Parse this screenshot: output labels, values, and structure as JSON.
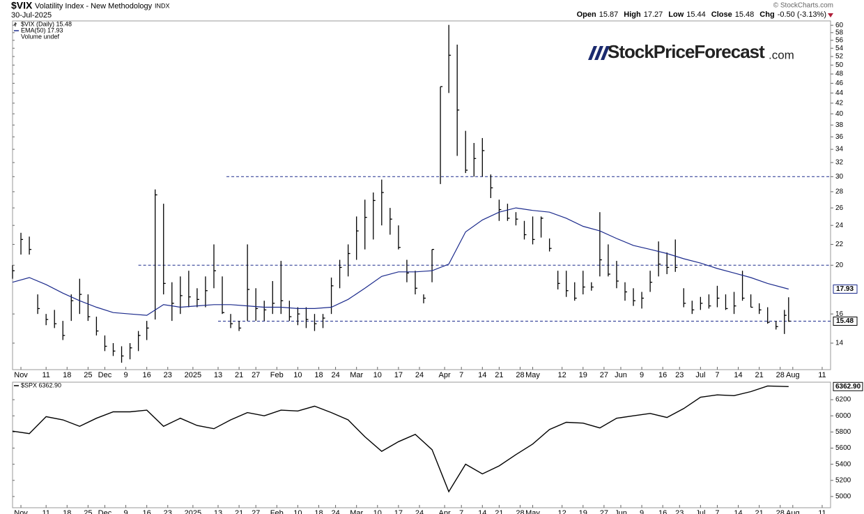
{
  "header": {
    "symbol": "$VIX",
    "name": "Volatility Index - New Methodology",
    "exchange": "INDX",
    "date": "30-Jul-2025",
    "quote": [
      [
        "Open",
        "15.87"
      ],
      [
        "High",
        "17.27"
      ],
      [
        "Low",
        "15.44"
      ],
      [
        "Close",
        "15.48"
      ],
      [
        "Chg",
        "-0.50 (-3.13%)"
      ]
    ],
    "copyright": "© StockCharts.com"
  },
  "logo": {
    "name": "StockPriceForecast",
    "suffix": ".com"
  },
  "chart_data": [
    {
      "type": "hlc",
      "log": true,
      "color": "#000000",
      "legend": [
        "$VIX (Daily) 15.48",
        "EMA(50) 17.93",
        "Volume undef"
      ],
      "x": [
        0,
        2,
        4,
        6,
        8,
        10,
        12,
        14,
        16,
        18,
        20,
        22,
        24,
        26,
        28,
        30,
        32,
        34,
        36,
        38,
        40,
        42,
        44,
        46,
        48,
        50,
        52,
        54,
        56,
        58,
        60,
        62,
        64,
        66,
        68,
        70,
        72,
        74,
        76,
        78,
        80,
        82,
        84,
        86,
        88,
        90,
        92,
        94,
        96,
        98,
        100,
        102,
        104,
        106,
        108,
        110,
        112,
        114,
        116,
        118,
        120,
        122,
        124,
        126,
        128,
        130,
        132,
        134,
        136,
        138,
        140,
        142,
        144,
        146,
        148,
        150,
        152,
        154,
        156,
        158,
        160,
        162,
        164,
        166,
        168,
        170,
        172,
        174,
        176,
        178,
        180,
        182,
        184,
        185
      ],
      "high": [
        20.0,
        23.2,
        22.8,
        17.5,
        16.0,
        16.3,
        15.5,
        17.5,
        18.8,
        17.5,
        15.8,
        14.5,
        14.0,
        13.8,
        14.0,
        14.8,
        15.5,
        28.3,
        26.5,
        18.5,
        19.0,
        19.5,
        18.0,
        19.0,
        22.0,
        19.0,
        16.0,
        15.5,
        22.0,
        18.0,
        17.0,
        18.6,
        20.4,
        17.0,
        16.5,
        16.5,
        16.0,
        16.0,
        18.9,
        20.5,
        22.0,
        25.0,
        27.0,
        27.9,
        29.6,
        26.0,
        24.0,
        20.5,
        19.5,
        17.5,
        21.5,
        45.3,
        60.1,
        54.9,
        37.0,
        35.0,
        35.8,
        30.3,
        27.0,
        26.5,
        25.5,
        24.5,
        25.0,
        25.0,
        22.6,
        19.5,
        19.5,
        18.5,
        19.5,
        18.5,
        25.5,
        22.0,
        20.4,
        18.5,
        18.0,
        17.7,
        19.5,
        22.3,
        21.2,
        22.5,
        18.0,
        17.0,
        17.3,
        17.5,
        18.2,
        17.5,
        17.7,
        19.5,
        17.5,
        16.8,
        16.5,
        15.5,
        16.3,
        17.27
      ],
      "low": [
        18.8,
        21.0,
        21.0,
        16.0,
        15.2,
        15.0,
        14.2,
        15.5,
        16.0,
        15.5,
        14.5,
        13.5,
        13.2,
        12.8,
        13.0,
        13.5,
        14.2,
        15.6,
        17.5,
        15.5,
        16.0,
        16.5,
        16.5,
        16.5,
        18.0,
        16.0,
        15.0,
        14.8,
        15.5,
        15.5,
        15.5,
        16.0,
        16.0,
        15.5,
        15.2,
        15.0,
        14.8,
        15.0,
        16.0,
        18.0,
        19.0,
        20.5,
        21.5,
        22.5,
        24.0,
        23.0,
        21.5,
        18.5,
        17.5,
        16.8,
        18.5,
        29.0,
        44.0,
        33.0,
        30.5,
        30.0,
        30.0,
        27.2,
        24.5,
        24.5,
        24.0,
        22.5,
        22.0,
        22.7,
        21.3,
        17.9,
        17.3,
        17.0,
        17.5,
        17.8,
        19.0,
        19.0,
        18.0,
        17.0,
        16.6,
        16.4,
        17.7,
        19.0,
        19.2,
        19.4,
        16.5,
        16.0,
        16.3,
        16.4,
        16.5,
        16.3,
        16.0,
        17.0,
        16.5,
        16.0,
        15.3,
        14.9,
        14.6,
        15.44
      ],
      "close": [
        19.5,
        22.5,
        21.5,
        16.4,
        15.6,
        15.3,
        14.5,
        17.0,
        17.5,
        15.8,
        14.8,
        13.8,
        13.5,
        13.2,
        13.7,
        14.5,
        15.0,
        27.6,
        18.4,
        16.8,
        17.4,
        17.3,
        17.1,
        17.8,
        19.5,
        16.1,
        15.3,
        15.0,
        17.9,
        16.4,
        16.3,
        16.8,
        17.0,
        15.8,
        16.0,
        15.6,
        15.3,
        15.7,
        18.2,
        19.8,
        21.1,
        23.4,
        24.9,
        26.9,
        27.9,
        24.7,
        21.7,
        19.3,
        18.0,
        17.2,
        21.5,
        45.3,
        52.3,
        40.7,
        30.9,
        32.6,
        33.8,
        28.5,
        25.8,
        24.8,
        24.7,
        23.0,
        22.5,
        24.8,
        21.6,
        18.4,
        17.8,
        17.2,
        18.1,
        18.1,
        20.5,
        19.2,
        18.6,
        17.7,
        17.0,
        17.2,
        18.5,
        20.1,
        19.8,
        19.8,
        16.8,
        16.3,
        16.8,
        16.6,
        17.2,
        16.4,
        16.6,
        17.2,
        16.5,
        16.3,
        15.4,
        15.1,
        15.9,
        15.48
      ],
      "ema": {
        "name": "EMA(50)",
        "color": "#1b2a8c",
        "x": [
          0,
          4,
          8,
          12,
          16,
          20,
          24,
          28,
          32,
          36,
          40,
          44,
          48,
          52,
          56,
          60,
          64,
          68,
          72,
          76,
          80,
          84,
          88,
          92,
          96,
          100,
          104,
          108,
          112,
          116,
          120,
          124,
          128,
          132,
          136,
          140,
          144,
          148,
          152,
          156,
          160,
          164,
          168,
          172,
          176,
          180,
          185
        ],
        "values": [
          18.5,
          18.9,
          18.3,
          17.6,
          17.0,
          16.5,
          16.1,
          16.0,
          15.9,
          16.7,
          16.5,
          16.6,
          16.7,
          16.7,
          16.6,
          16.5,
          16.5,
          16.4,
          16.4,
          16.5,
          17.1,
          18.0,
          19.0,
          19.4,
          19.4,
          19.5,
          20.1,
          23.3,
          24.6,
          25.5,
          26.0,
          25.7,
          25.5,
          24.8,
          23.9,
          23.4,
          22.6,
          21.9,
          21.5,
          21.1,
          20.6,
          20.2,
          19.7,
          19.3,
          18.9,
          18.4,
          17.93
        ]
      },
      "hlines": [
        {
          "value": 30,
          "from": 51
        },
        {
          "value": 20,
          "from": 30
        },
        {
          "value": 15.48,
          "from": 49
        }
      ],
      "hline_color": "#1b2a8c",
      "xlim": [
        0,
        195
      ],
      "ylim": [
        12.4,
        61.2
      ],
      "yticks": [
        14,
        16,
        20,
        22,
        24,
        26,
        28,
        30,
        32,
        34,
        36,
        38,
        40,
        42,
        44,
        46,
        48,
        50,
        52,
        54,
        56,
        58,
        60
      ],
      "xticks": [
        {
          "value": 2,
          "label": "Nov"
        },
        {
          "value": 8,
          "label": "11"
        },
        {
          "value": 13,
          "label": "18"
        },
        {
          "value": 18,
          "label": "25"
        },
        {
          "value": 22,
          "label": "Dec"
        },
        {
          "value": 27,
          "label": "9"
        },
        {
          "value": 32,
          "label": "16"
        },
        {
          "value": 37,
          "label": "23"
        },
        {
          "value": 43,
          "label": "2025"
        },
        {
          "value": 49,
          "label": "13"
        },
        {
          "value": 54,
          "label": "21"
        },
        {
          "value": 58,
          "label": "27"
        },
        {
          "value": 63,
          "label": "Feb"
        },
        {
          "value": 68,
          "label": "10"
        },
        {
          "value": 73,
          "label": "18"
        },
        {
          "value": 77,
          "label": "24"
        },
        {
          "value": 82,
          "label": "Mar"
        },
        {
          "value": 87,
          "label": "10"
        },
        {
          "value": 92,
          "label": "17"
        },
        {
          "value": 97,
          "label": "24"
        },
        {
          "value": 103,
          "label": "Apr"
        },
        {
          "value": 107,
          "label": "7"
        },
        {
          "value": 112,
          "label": "14"
        },
        {
          "value": 116,
          "label": "21"
        },
        {
          "value": 121,
          "label": "28"
        },
        {
          "value": 124,
          "label": "May"
        },
        {
          "value": 131,
          "label": "12"
        },
        {
          "value": 136,
          "label": "19"
        },
        {
          "value": 141,
          "label": "27"
        },
        {
          "value": 145,
          "label": "Jun"
        },
        {
          "value": 150,
          "label": "9"
        },
        {
          "value": 155,
          "label": "16"
        },
        {
          "value": 159,
          "label": "23"
        },
        {
          "value": 164,
          "label": "Jul"
        },
        {
          "value": 168,
          "label": "7"
        },
        {
          "value": 173,
          "label": "14"
        },
        {
          "value": 178,
          "label": "21"
        },
        {
          "value": 183,
          "label": "28"
        },
        {
          "value": 186,
          "label": "Aug"
        },
        {
          "value": 193,
          "label": "11"
        }
      ]
    },
    {
      "type": "line",
      "name": "$SPX",
      "color": "#000000",
      "legend": [
        "$SPX 6362.90"
      ],
      "last_label": "6362.90",
      "x": [
        0,
        4,
        8,
        12,
        16,
        20,
        24,
        28,
        32,
        36,
        40,
        44,
        48,
        52,
        56,
        60,
        64,
        68,
        72,
        76,
        80,
        84,
        88,
        92,
        96,
        100,
        104,
        108,
        112,
        116,
        120,
        124,
        128,
        132,
        136,
        140,
        144,
        148,
        152,
        156,
        160,
        164,
        168,
        172,
        176,
        180,
        185
      ],
      "values": [
        5810,
        5780,
        5990,
        5950,
        5870,
        5970,
        6050,
        6050,
        6070,
        5870,
        5970,
        5880,
        5840,
        5950,
        6040,
        6000,
        6070,
        6060,
        6120,
        6040,
        5950,
        5740,
        5560,
        5680,
        5770,
        5580,
        5060,
        5400,
        5280,
        5380,
        5520,
        5650,
        5830,
        5920,
        5910,
        5850,
        5970,
        6000,
        6030,
        5980,
        6090,
        6230,
        6260,
        6250,
        6300,
        6370,
        6362.9
      ],
      "xlim": [
        0,
        195
      ],
      "ylim": [
        4861,
        6417
      ],
      "yticks": [
        5000,
        5200,
        5400,
        5600,
        5800,
        6000,
        6200
      ],
      "xticks": [
        {
          "value": 2,
          "label": "Nov"
        },
        {
          "value": 8,
          "label": "11"
        },
        {
          "value": 13,
          "label": "18"
        },
        {
          "value": 18,
          "label": "25"
        },
        {
          "value": 22,
          "label": "Dec"
        },
        {
          "value": 27,
          "label": "9"
        },
        {
          "value": 32,
          "label": "16"
        },
        {
          "value": 37,
          "label": "23"
        },
        {
          "value": 43,
          "label": "2025"
        },
        {
          "value": 49,
          "label": "13"
        },
        {
          "value": 54,
          "label": "21"
        },
        {
          "value": 58,
          "label": "27"
        },
        {
          "value": 63,
          "label": "Feb"
        },
        {
          "value": 68,
          "label": "10"
        },
        {
          "value": 73,
          "label": "18"
        },
        {
          "value": 77,
          "label": "24"
        },
        {
          "value": 82,
          "label": "Mar"
        },
        {
          "value": 87,
          "label": "10"
        },
        {
          "value": 92,
          "label": "17"
        },
        {
          "value": 97,
          "label": "24"
        },
        {
          "value": 103,
          "label": "Apr"
        },
        {
          "value": 107,
          "label": "7"
        },
        {
          "value": 112,
          "label": "14"
        },
        {
          "value": 116,
          "label": "21"
        },
        {
          "value": 121,
          "label": "28"
        },
        {
          "value": 124,
          "label": "May"
        },
        {
          "value": 131,
          "label": "12"
        },
        {
          "value": 136,
          "label": "19"
        },
        {
          "value": 141,
          "label": "27"
        },
        {
          "value": 145,
          "label": "Jun"
        },
        {
          "value": 150,
          "label": "9"
        },
        {
          "value": 155,
          "label": "16"
        },
        {
          "value": 159,
          "label": "23"
        },
        {
          "value": 164,
          "label": "Jul"
        },
        {
          "value": 168,
          "label": "7"
        },
        {
          "value": 173,
          "label": "14"
        },
        {
          "value": 178,
          "label": "21"
        },
        {
          "value": 183,
          "label": "28"
        },
        {
          "value": 186,
          "label": "Aug"
        },
        {
          "value": 193,
          "label": "11"
        }
      ]
    }
  ]
}
